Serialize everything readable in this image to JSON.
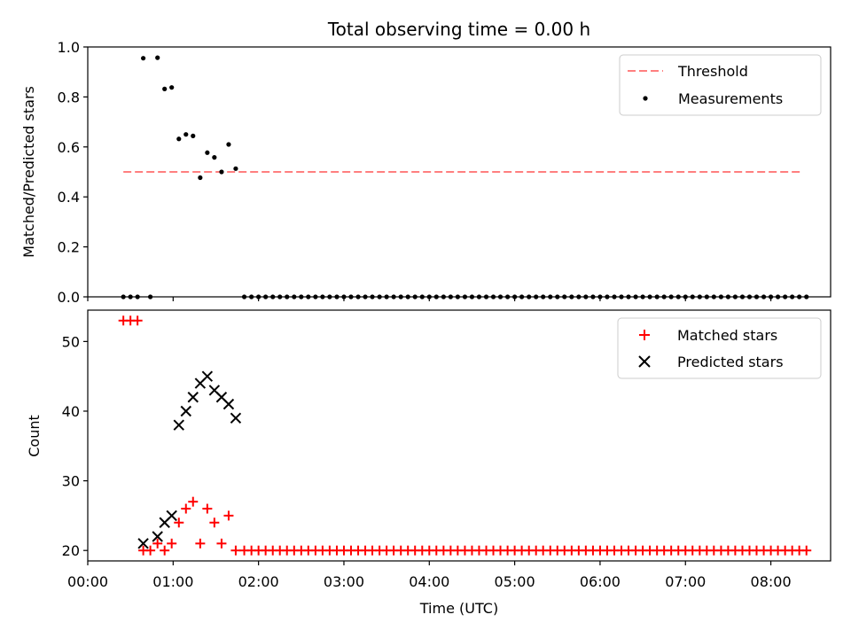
{
  "figure": {
    "title": "Total observing time = 0.00 h",
    "xlabel": "Time (UTC)",
    "x_tick_labels": [
      "00:00",
      "01:00",
      "02:00",
      "03:00",
      "04:00",
      "05:00",
      "06:00",
      "07:00",
      "08:00"
    ]
  },
  "chart_data": [
    {
      "type": "scatter",
      "ylabel": "Matched/Predicted stars",
      "xlim_hours": [
        0,
        8.7
      ],
      "ylim": [
        0,
        1.0
      ],
      "y_ticks": [
        0.0,
        0.2,
        0.4,
        0.6,
        0.8,
        1.0
      ],
      "y_tick_labels": [
        "0.0",
        "0.2",
        "0.4",
        "0.6",
        "0.8",
        "1.0"
      ],
      "legend": {
        "placement": "top-right",
        "entries": [
          "Threshold",
          "Measurements"
        ]
      },
      "series": [
        {
          "name": "Threshold",
          "style": "dashed-line",
          "color": "#ff7f7f",
          "points": [
            [
              0.417,
              0.5
            ],
            [
              8.367,
              0.5
            ]
          ]
        },
        {
          "name": "Measurements",
          "style": "dot",
          "color": "#000000",
          "points": [
            [
              0.417,
              0.0
            ],
            [
              0.5,
              0.0
            ],
            [
              0.583,
              0.0
            ],
            [
              0.65,
              0.955
            ],
            [
              0.733,
              0.0
            ],
            [
              0.817,
              0.957
            ],
            [
              0.9,
              0.832
            ],
            [
              0.983,
              0.838
            ],
            [
              1.067,
              0.632
            ],
            [
              1.15,
              0.65
            ],
            [
              1.233,
              0.644
            ],
            [
              1.317,
              0.477
            ],
            [
              1.4,
              0.577
            ],
            [
              1.483,
              0.558
            ],
            [
              1.567,
              0.5
            ],
            [
              1.65,
              0.61
            ],
            [
              1.733,
              0.513
            ],
            [
              1.833,
              0.0
            ],
            [
              1.917,
              0.0
            ],
            [
              2.0,
              0.0
            ],
            [
              2.083,
              0.0
            ],
            [
              2.167,
              0.0
            ],
            [
              2.25,
              0.0
            ],
            [
              2.333,
              0.0
            ],
            [
              2.417,
              0.0
            ],
            [
              2.5,
              0.0
            ],
            [
              2.583,
              0.0
            ],
            [
              2.667,
              0.0
            ],
            [
              2.75,
              0.0
            ],
            [
              2.833,
              0.0
            ],
            [
              2.917,
              0.0
            ],
            [
              3.0,
              0.0
            ],
            [
              3.083,
              0.0
            ],
            [
              3.167,
              0.0
            ],
            [
              3.25,
              0.0
            ],
            [
              3.333,
              0.0
            ],
            [
              3.417,
              0.0
            ],
            [
              3.5,
              0.0
            ],
            [
              3.583,
              0.0
            ],
            [
              3.667,
              0.0
            ],
            [
              3.75,
              0.0
            ],
            [
              3.833,
              0.0
            ],
            [
              3.917,
              0.0
            ],
            [
              4.0,
              0.0
            ],
            [
              4.083,
              0.0
            ],
            [
              4.167,
              0.0
            ],
            [
              4.25,
              0.0
            ],
            [
              4.333,
              0.0
            ],
            [
              4.417,
              0.0
            ],
            [
              4.5,
              0.0
            ],
            [
              4.583,
              0.0
            ],
            [
              4.667,
              0.0
            ],
            [
              4.75,
              0.0
            ],
            [
              4.833,
              0.0
            ],
            [
              4.917,
              0.0
            ],
            [
              5.0,
              0.0
            ],
            [
              5.083,
              0.0
            ],
            [
              5.167,
              0.0
            ],
            [
              5.25,
              0.0
            ],
            [
              5.333,
              0.0
            ],
            [
              5.417,
              0.0
            ],
            [
              5.5,
              0.0
            ],
            [
              5.583,
              0.0
            ],
            [
              5.667,
              0.0
            ],
            [
              5.75,
              0.0
            ],
            [
              5.833,
              0.0
            ],
            [
              5.917,
              0.0
            ],
            [
              6.0,
              0.0
            ],
            [
              6.083,
              0.0
            ],
            [
              6.167,
              0.0
            ],
            [
              6.25,
              0.0
            ],
            [
              6.333,
              0.0
            ],
            [
              6.417,
              0.0
            ],
            [
              6.5,
              0.0
            ],
            [
              6.583,
              0.0
            ],
            [
              6.667,
              0.0
            ],
            [
              6.75,
              0.0
            ],
            [
              6.833,
              0.0
            ],
            [
              6.917,
              0.0
            ],
            [
              7.0,
              0.0
            ],
            [
              7.083,
              0.0
            ],
            [
              7.167,
              0.0
            ],
            [
              7.25,
              0.0
            ],
            [
              7.333,
              0.0
            ],
            [
              7.417,
              0.0
            ],
            [
              7.5,
              0.0
            ],
            [
              7.583,
              0.0
            ],
            [
              7.667,
              0.0
            ],
            [
              7.75,
              0.0
            ],
            [
              7.833,
              0.0
            ],
            [
              7.917,
              0.0
            ],
            [
              8.0,
              0.0
            ],
            [
              8.083,
              0.0
            ],
            [
              8.167,
              0.0
            ],
            [
              8.25,
              0.0
            ],
            [
              8.333,
              0.0
            ],
            [
              8.417,
              0.0
            ]
          ]
        }
      ]
    },
    {
      "type": "scatter",
      "ylabel": "Count",
      "xlim_hours": [
        0,
        8.7
      ],
      "ylim": [
        18.5,
        54.5
      ],
      "y_ticks": [
        20,
        30,
        40,
        50
      ],
      "y_tick_labels": [
        "20",
        "30",
        "40",
        "50"
      ],
      "legend": {
        "placement": "top-right",
        "entries": [
          "Matched stars",
          "Predicted stars"
        ]
      },
      "series": [
        {
          "name": "Matched stars",
          "marker": "plus",
          "color": "#ff0000",
          "points": [
            [
              0.417,
              53
            ],
            [
              0.5,
              53
            ],
            [
              0.583,
              53
            ],
            [
              0.65,
              20
            ],
            [
              0.733,
              20
            ],
            [
              0.817,
              21
            ],
            [
              0.9,
              20
            ],
            [
              0.983,
              21
            ],
            [
              1.067,
              24
            ],
            [
              1.15,
              26
            ],
            [
              1.233,
              27
            ],
            [
              1.317,
              21
            ],
            [
              1.4,
              26
            ],
            [
              1.483,
              24
            ],
            [
              1.567,
              21
            ],
            [
              1.65,
              25
            ],
            [
              1.733,
              20
            ],
            [
              1.833,
              20
            ],
            [
              1.917,
              20
            ],
            [
              2.0,
              20
            ],
            [
              2.083,
              20
            ],
            [
              2.167,
              20
            ],
            [
              2.25,
              20
            ],
            [
              2.333,
              20
            ],
            [
              2.417,
              20
            ],
            [
              2.5,
              20
            ],
            [
              2.583,
              20
            ],
            [
              2.667,
              20
            ],
            [
              2.75,
              20
            ],
            [
              2.833,
              20
            ],
            [
              2.917,
              20
            ],
            [
              3.0,
              20
            ],
            [
              3.083,
              20
            ],
            [
              3.167,
              20
            ],
            [
              3.25,
              20
            ],
            [
              3.333,
              20
            ],
            [
              3.417,
              20
            ],
            [
              3.5,
              20
            ],
            [
              3.583,
              20
            ],
            [
              3.667,
              20
            ],
            [
              3.75,
              20
            ],
            [
              3.833,
              20
            ],
            [
              3.917,
              20
            ],
            [
              4.0,
              20
            ],
            [
              4.083,
              20
            ],
            [
              4.167,
              20
            ],
            [
              4.25,
              20
            ],
            [
              4.333,
              20
            ],
            [
              4.417,
              20
            ],
            [
              4.5,
              20
            ],
            [
              4.583,
              20
            ],
            [
              4.667,
              20
            ],
            [
              4.75,
              20
            ],
            [
              4.833,
              20
            ],
            [
              4.917,
              20
            ],
            [
              5.0,
              20
            ],
            [
              5.083,
              20
            ],
            [
              5.167,
              20
            ],
            [
              5.25,
              20
            ],
            [
              5.333,
              20
            ],
            [
              5.417,
              20
            ],
            [
              5.5,
              20
            ],
            [
              5.583,
              20
            ],
            [
              5.667,
              20
            ],
            [
              5.75,
              20
            ],
            [
              5.833,
              20
            ],
            [
              5.917,
              20
            ],
            [
              6.0,
              20
            ],
            [
              6.083,
              20
            ],
            [
              6.167,
              20
            ],
            [
              6.25,
              20
            ],
            [
              6.333,
              20
            ],
            [
              6.417,
              20
            ],
            [
              6.5,
              20
            ],
            [
              6.583,
              20
            ],
            [
              6.667,
              20
            ],
            [
              6.75,
              20
            ],
            [
              6.833,
              20
            ],
            [
              6.917,
              20
            ],
            [
              7.0,
              20
            ],
            [
              7.083,
              20
            ],
            [
              7.167,
              20
            ],
            [
              7.25,
              20
            ],
            [
              7.333,
              20
            ],
            [
              7.417,
              20
            ],
            [
              7.5,
              20
            ],
            [
              7.583,
              20
            ],
            [
              7.667,
              20
            ],
            [
              7.75,
              20
            ],
            [
              7.833,
              20
            ],
            [
              7.917,
              20
            ],
            [
              8.0,
              20
            ],
            [
              8.083,
              20
            ],
            [
              8.167,
              20
            ],
            [
              8.25,
              20
            ],
            [
              8.333,
              20
            ],
            [
              8.417,
              20
            ]
          ]
        },
        {
          "name": "Predicted stars",
          "marker": "x",
          "color": "#000000",
          "points": [
            [
              0.65,
              21
            ],
            [
              0.817,
              22
            ],
            [
              0.9,
              24
            ],
            [
              0.983,
              25
            ],
            [
              1.067,
              38
            ],
            [
              1.15,
              40
            ],
            [
              1.233,
              42
            ],
            [
              1.317,
              44
            ],
            [
              1.4,
              45
            ],
            [
              1.483,
              43
            ],
            [
              1.567,
              42
            ],
            [
              1.65,
              41
            ],
            [
              1.733,
              39
            ]
          ]
        }
      ]
    }
  ]
}
